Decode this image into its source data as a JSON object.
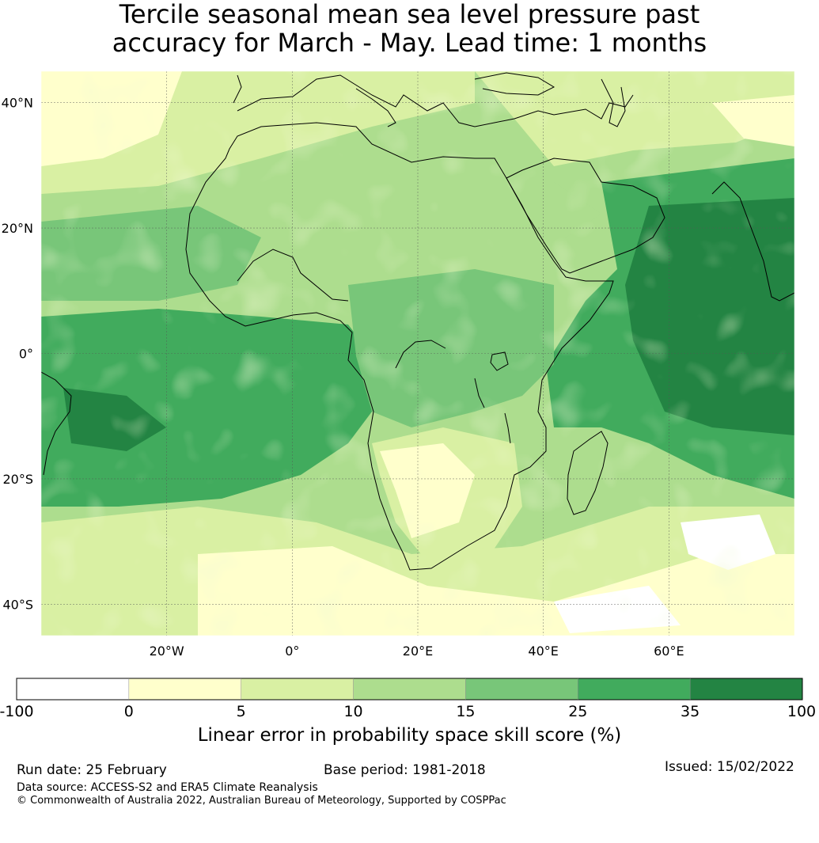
{
  "title_line1": "Tercile seasonal mean sea level pressure past",
  "title_line2": "accuracy for March - May. Lead time: 1 months",
  "map": {
    "lon_range": [
      -40,
      80
    ],
    "lat_range": [
      -45,
      45
    ],
    "x_ticks": [
      {
        "lon": -20,
        "label": "20°W"
      },
      {
        "lon": 0,
        "label": "0°"
      },
      {
        "lon": 20,
        "label": "20°E"
      },
      {
        "lon": 40,
        "label": "40°E"
      },
      {
        "lon": 60,
        "label": "60°E"
      }
    ],
    "y_ticks": [
      {
        "lat": 40,
        "label": "40°N"
      },
      {
        "lat": 20,
        "label": "20°N"
      },
      {
        "lat": 0,
        "label": "0°"
      },
      {
        "lat": -20,
        "label": "20°S"
      },
      {
        "lat": -40,
        "label": "40°S"
      }
    ],
    "grid": true,
    "coastline_color": "#000000"
  },
  "colorbar": {
    "bounds": [
      "-100",
      "0",
      "5",
      "10",
      "15",
      "25",
      "35",
      "100"
    ],
    "colors": [
      "#ffffff",
      "#ffffcc",
      "#d9f0a3",
      "#addd8e",
      "#78c679",
      "#41ab5d",
      "#238443"
    ],
    "label": "Linear error in probability space skill score (%)"
  },
  "footer": {
    "run_date": "Run date: 25 February",
    "base_period": "Base period: 1981-2018",
    "issued": "Issued: 15/02/2022",
    "data_source": "Data source: ACCESS-S2 and ERA5 Climate Reanalysis",
    "copyright": "© Commonwealth of Australia 2022, Australian Bureau of Meteorology, Supported by COSPPac"
  }
}
